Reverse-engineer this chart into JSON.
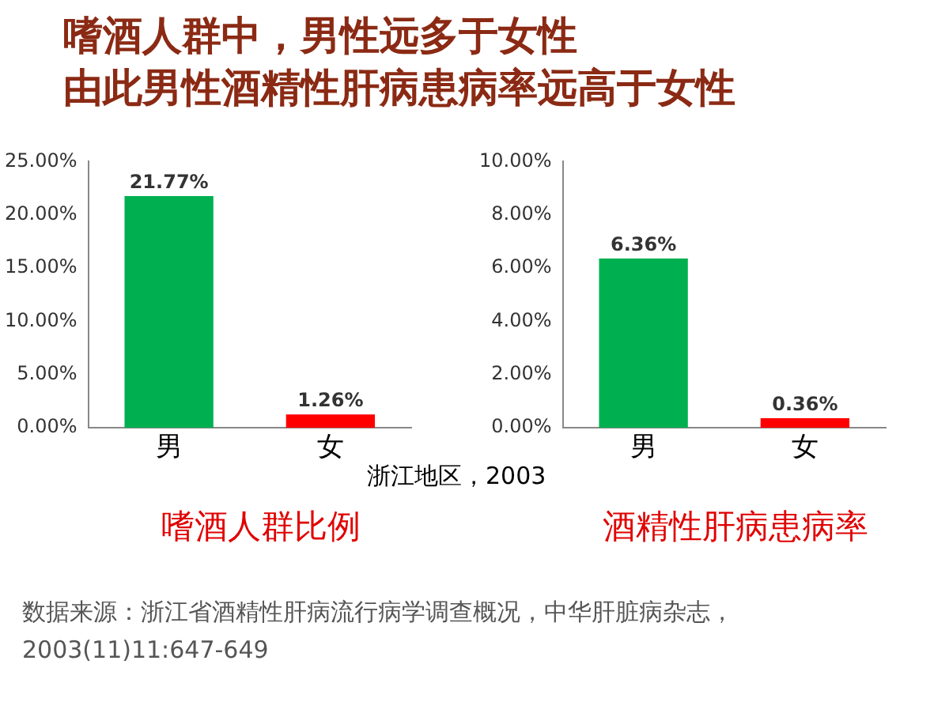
{
  "chart_data": [
    {
      "type": "bar",
      "title": "嗜酒人群中，男性远多于女性",
      "subtitle": "由此男性酒精性肝病患病率远高于女性",
      "xlabel": "嗜酒人群比例",
      "categories": [
        "男",
        "女"
      ],
      "values": [
        21.77,
        1.26
      ],
      "colors": [
        "#00b050",
        "#ff0000"
      ],
      "value_labels": [
        "21.77%",
        "1.26%"
      ],
      "ylim": [
        0,
        25
      ],
      "yticks": [
        {
          "value": 0,
          "label": "0.00%"
        },
        {
          "value": 5,
          "label": "5.00%"
        },
        {
          "value": 10,
          "label": "10.00%"
        },
        {
          "value": 15,
          "label": "15.00%"
        },
        {
          "value": 20,
          "label": "20.00%"
        },
        {
          "value": 25,
          "label": "25.00%"
        }
      ],
      "grid": false,
      "legend": false,
      "annotations": [
        "浙江地区，2003",
        "数据来源：浙江省酒精性肝病流行病学调查概况，中华肝脏病杂志，\n2003(11)11:647-649"
      ]
    },
    {
      "type": "bar",
      "xlabel": "酒精性肝病患病率",
      "categories": [
        "男",
        "女"
      ],
      "values": [
        6.36,
        0.36
      ],
      "colors": [
        "#00b050",
        "#ff0000"
      ],
      "value_labels": [
        "6.36%",
        "0.36%"
      ],
      "ylim": [
        0,
        10
      ],
      "yticks": [
        {
          "value": 0,
          "label": "0.00%"
        },
        {
          "value": 2,
          "label": "2.00%"
        },
        {
          "value": 4,
          "label": "4.00%"
        },
        {
          "value": 6,
          "label": "6.00%"
        },
        {
          "value": 8,
          "label": "8.00%"
        },
        {
          "value": 10,
          "label": "10.00%"
        }
      ],
      "grid": false,
      "legend": false
    }
  ]
}
